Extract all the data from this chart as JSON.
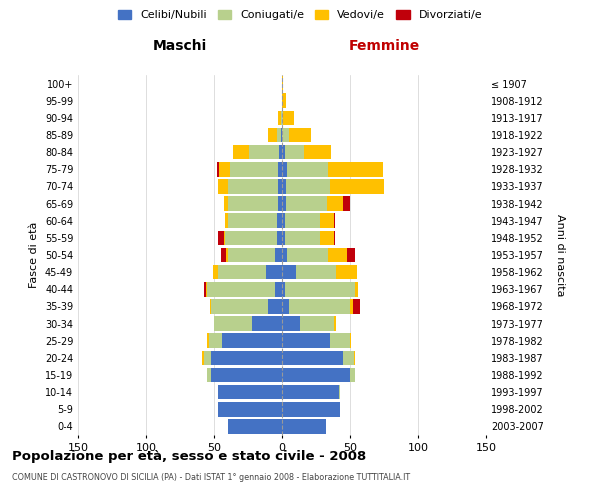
{
  "age_groups": [
    "0-4",
    "5-9",
    "10-14",
    "15-19",
    "20-24",
    "25-29",
    "30-34",
    "35-39",
    "40-44",
    "45-49",
    "50-54",
    "55-59",
    "60-64",
    "65-69",
    "70-74",
    "75-79",
    "80-84",
    "85-89",
    "90-94",
    "95-99",
    "100+"
  ],
  "birth_years": [
    "2003-2007",
    "1998-2002",
    "1993-1997",
    "1988-1992",
    "1983-1987",
    "1978-1982",
    "1973-1977",
    "1968-1972",
    "1963-1967",
    "1958-1962",
    "1953-1957",
    "1948-1952",
    "1943-1947",
    "1938-1942",
    "1933-1937",
    "1928-1932",
    "1923-1927",
    "1918-1922",
    "1913-1917",
    "1908-1912",
    "≤ 1907"
  ],
  "male": {
    "celibe": [
      40,
      47,
      47,
      52,
      52,
      44,
      22,
      10,
      5,
      12,
      5,
      4,
      4,
      3,
      3,
      3,
      2,
      1,
      0,
      0,
      0
    ],
    "coniugato": [
      0,
      0,
      0,
      3,
      5,
      10,
      28,
      42,
      50,
      35,
      35,
      38,
      36,
      37,
      37,
      35,
      22,
      3,
      1,
      0,
      0
    ],
    "vedovo": [
      0,
      0,
      0,
      0,
      2,
      1,
      0,
      1,
      1,
      4,
      1,
      1,
      2,
      3,
      7,
      8,
      12,
      6,
      2,
      0,
      0
    ],
    "divorziato": [
      0,
      0,
      0,
      0,
      0,
      0,
      0,
      0,
      1,
      0,
      4,
      4,
      0,
      0,
      0,
      2,
      0,
      0,
      0,
      0,
      0
    ]
  },
  "female": {
    "nubile": [
      32,
      43,
      42,
      50,
      45,
      35,
      13,
      5,
      2,
      10,
      4,
      2,
      2,
      3,
      3,
      4,
      2,
      0,
      0,
      0,
      0
    ],
    "coniugata": [
      0,
      0,
      1,
      4,
      8,
      15,
      25,
      45,
      52,
      30,
      30,
      26,
      26,
      30,
      32,
      30,
      14,
      5,
      1,
      0,
      0
    ],
    "vedova": [
      0,
      0,
      0,
      0,
      1,
      1,
      2,
      2,
      2,
      15,
      14,
      10,
      10,
      12,
      40,
      40,
      20,
      16,
      8,
      3,
      1
    ],
    "divorziata": [
      0,
      0,
      0,
      0,
      0,
      0,
      0,
      5,
      0,
      0,
      6,
      1,
      1,
      5,
      0,
      0,
      0,
      0,
      0,
      0,
      0
    ]
  },
  "colors": {
    "celibe_nubile": "#4472c4",
    "coniugato_a": "#b8d08d",
    "vedovo_a": "#ffc000",
    "divorziato_a": "#c0000b"
  },
  "title": "Popolazione per età, sesso e stato civile - 2008",
  "subtitle": "COMUNE DI CASTRONOVO DI SICILIA (PA) - Dati ISTAT 1° gennaio 2008 - Elaborazione TUTTITALIA.IT",
  "xlabel_left": "Maschi",
  "xlabel_right": "Femmine",
  "ylabel_left": "Fasce di età",
  "ylabel_right": "Anni di nascita",
  "xlim": 150,
  "legend_labels": [
    "Celibi/Nubili",
    "Coniugati/e",
    "Vedovi/e",
    "Divorziati/e"
  ],
  "background_color": "#ffffff",
  "grid_color": "#cccccc"
}
